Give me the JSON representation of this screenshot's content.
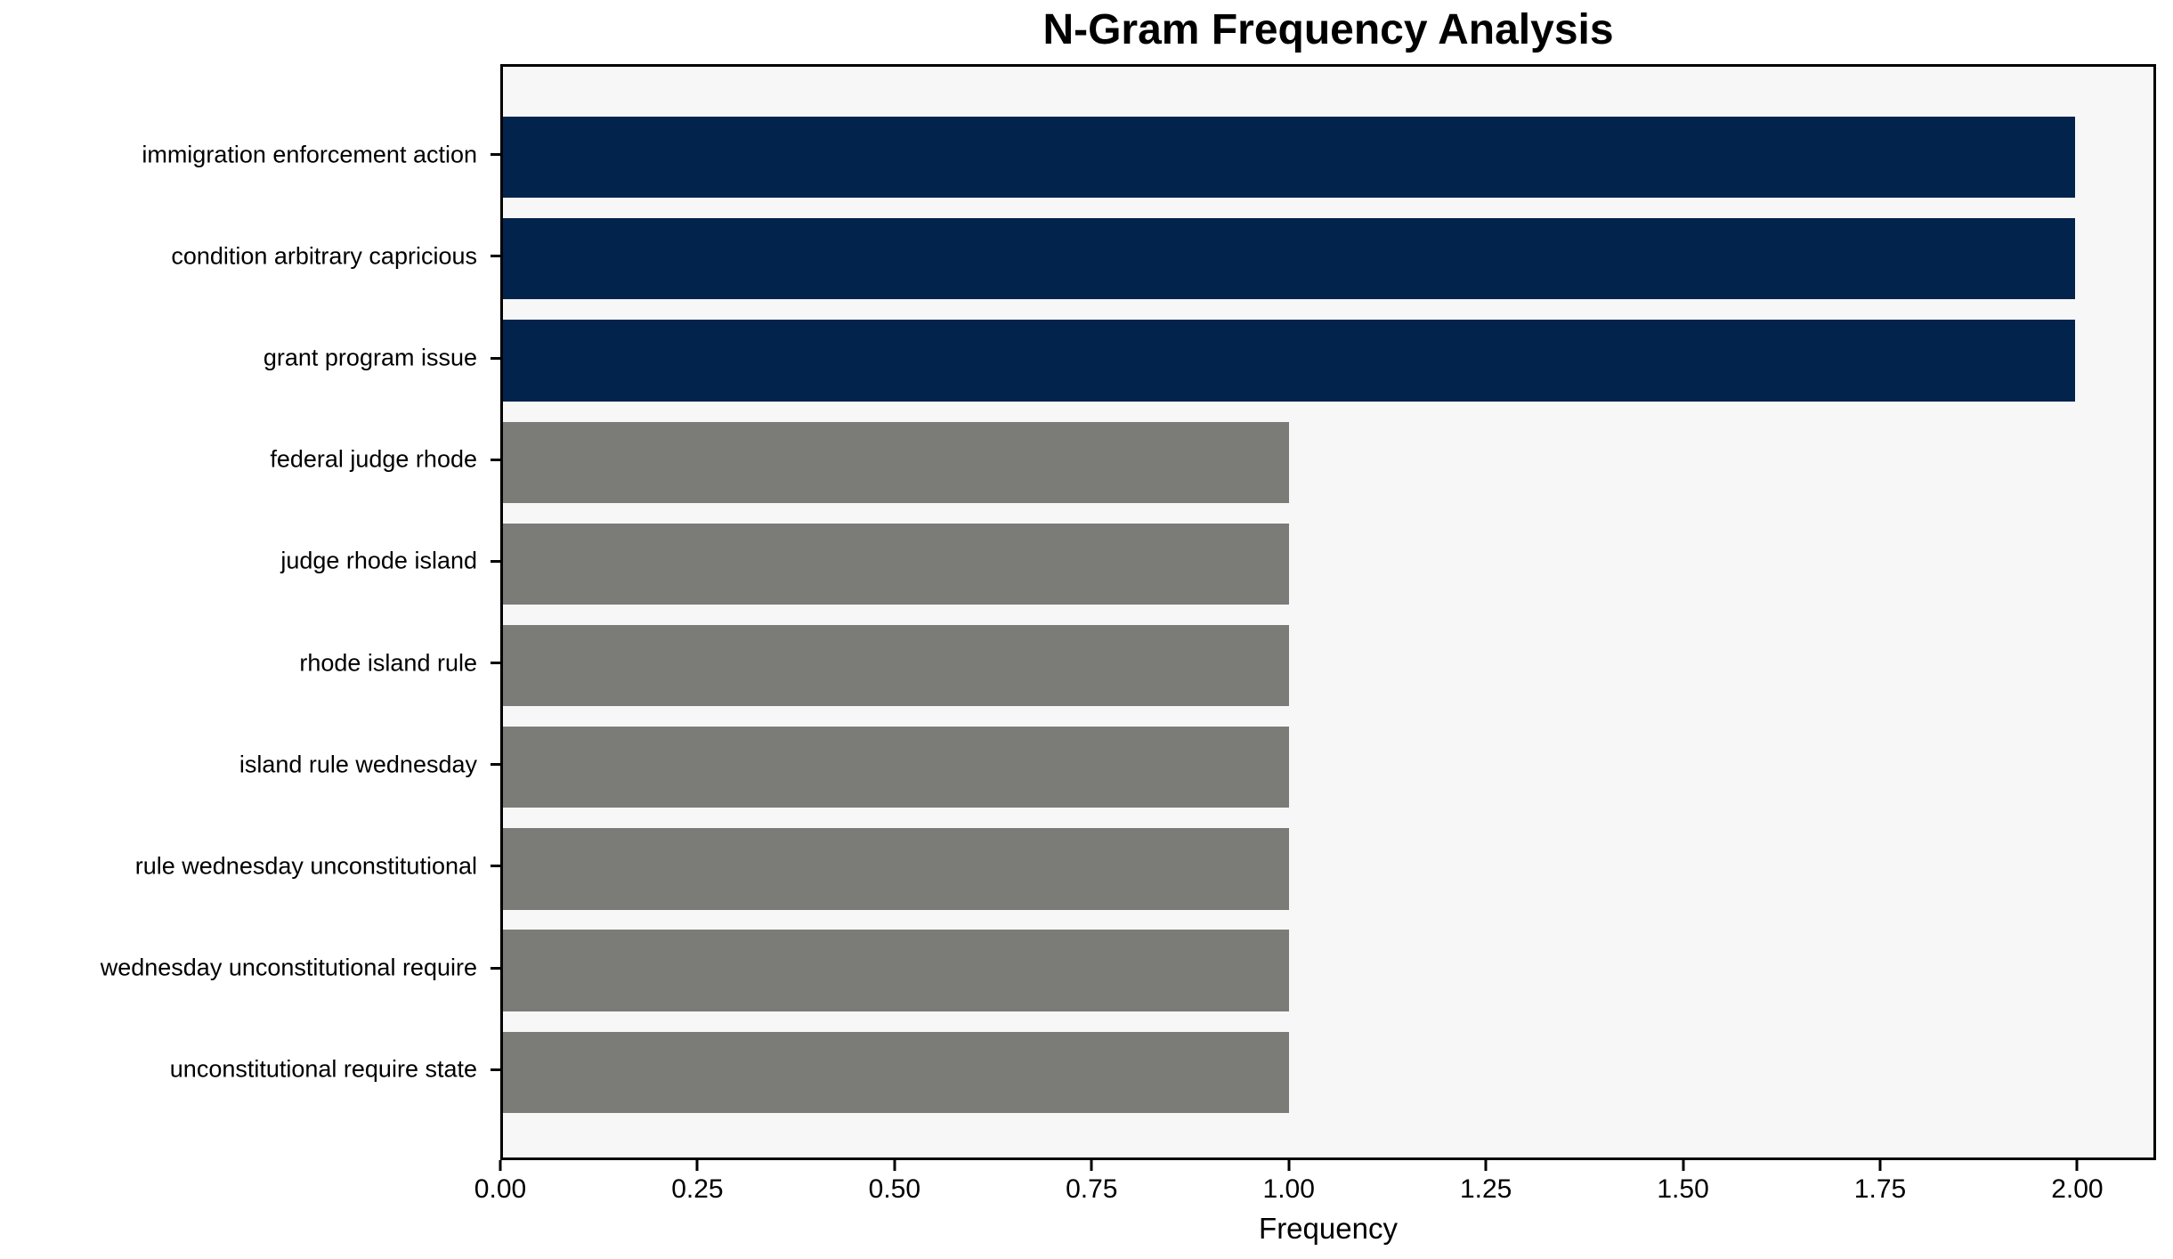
{
  "chart_data": {
    "type": "bar",
    "orientation": "horizontal",
    "title": "N-Gram Frequency Analysis",
    "xlabel": "Frequency",
    "ylabel": "",
    "categories": [
      "immigration enforcement action",
      "condition arbitrary capricious",
      "grant program issue",
      "federal judge rhode",
      "judge rhode island",
      "rhode island rule",
      "island rule wednesday",
      "rule wednesday unconstitutional",
      "wednesday unconstitutional require",
      "unconstitutional require state"
    ],
    "values": [
      2,
      2,
      2,
      1,
      1,
      1,
      1,
      1,
      1,
      1
    ],
    "bar_colors": [
      "#02234c",
      "#02234c",
      "#02234c",
      "#7b7b78",
      "#7b7b78",
      "#7b7b78",
      "#7b7b78",
      "#7b7b78",
      "#7b7b78",
      "#7b7b78"
    ],
    "xlim": [
      0,
      2.1
    ],
    "xticks": {
      "values": [
        0.0,
        0.25,
        0.5,
        0.75,
        1.0,
        1.25,
        1.5,
        1.75,
        2.0
      ],
      "labels": [
        "0.00",
        "0.25",
        "0.50",
        "0.75",
        "1.00",
        "1.25",
        "1.50",
        "1.75",
        "2.00"
      ]
    },
    "grid": false,
    "legend": null,
    "colors": {
      "highlight": "#02234c",
      "muted": "#7b7b78",
      "plot_background": "#f7f7f7",
      "figure_background": "#ffffff",
      "spine": "#000000",
      "text": "#000000"
    }
  }
}
